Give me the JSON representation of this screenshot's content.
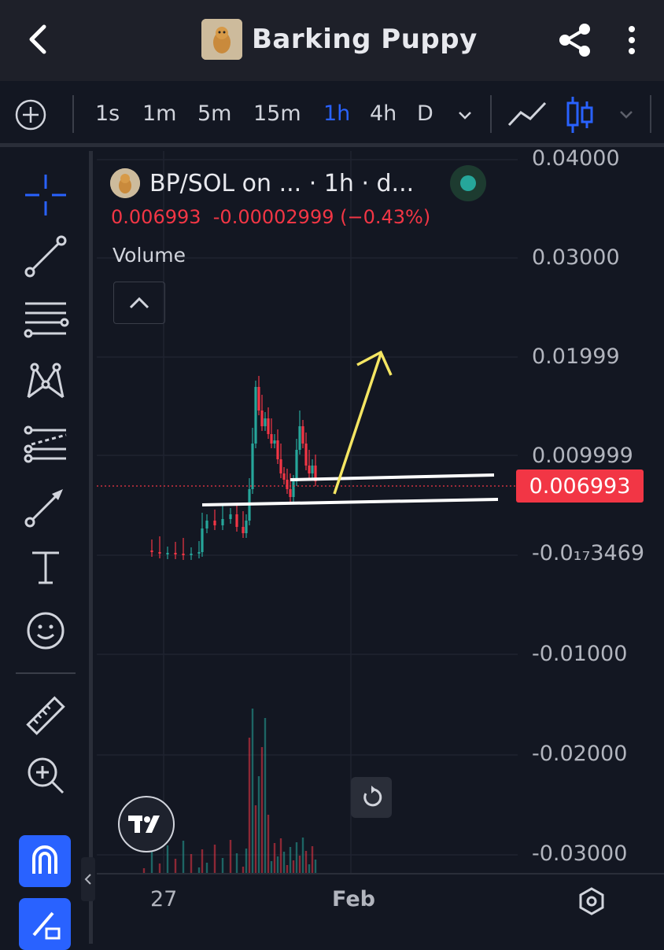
{
  "header": {
    "title": "Barking Puppy",
    "back_icon": "chevron-left-icon",
    "share_icon": "share-icon",
    "more_icon": "more-vertical-icon"
  },
  "toolbar": {
    "timeframes": [
      "1s",
      "1m",
      "5m",
      "15m",
      "1h",
      "4h",
      "D"
    ],
    "active_timeframe": "1h"
  },
  "legend": {
    "symbol": "BP/SOL on ... · 1h · d...",
    "price_line": "0.006993  -0.00002999 (−0.43%)",
    "volume_label": "Volume"
  },
  "price_axis": {
    "ticks": [
      "0.04000",
      "0.03000",
      "0.01999",
      "0.009999",
      "-0.0₁₇3469",
      "-0.01000",
      "-0.02000",
      "-0.03000"
    ],
    "last_price": "0.006993"
  },
  "time_axis": {
    "ticks": [
      "27",
      "Feb"
    ]
  },
  "colors": {
    "accent": "#2962ff",
    "up": "#26a69a",
    "down": "#f23645",
    "background": "#131722",
    "annotation_arrow": "#f5e663"
  }
}
